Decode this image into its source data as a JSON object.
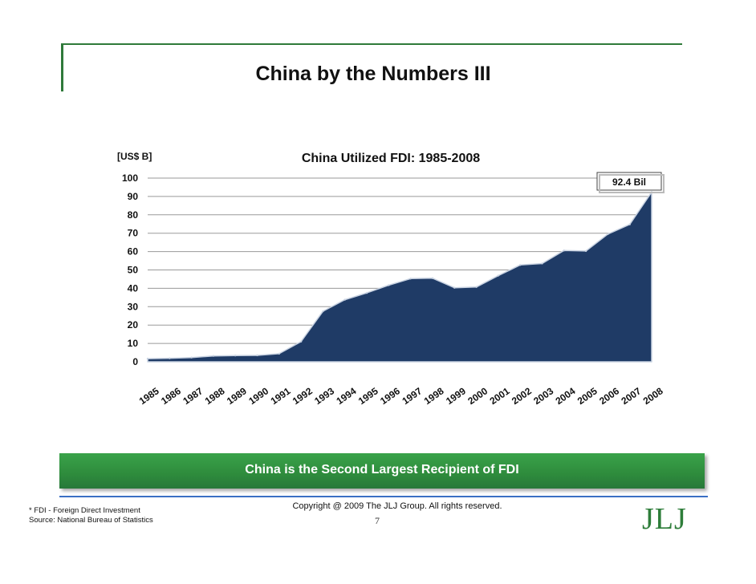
{
  "slide": {
    "title": "China by the Numbers III",
    "banner": "China is the Second Largest Recipient of FDI",
    "footnote_fdi": "* FDI - Foreign Direct Investment",
    "footnote_source": "Source: National Bureau of Statistics",
    "copyright": "Copyright @ 2009 The JLJ Group. All rights reserved.",
    "page_number": "7",
    "logo": "JLJ"
  },
  "colors": {
    "area_fill": "#1f3b66",
    "frame_green": "#2f7a3a",
    "banner_green": "#2e8b3c",
    "footer_blue": "#3b6fc4"
  },
  "chart_data": {
    "type": "area",
    "title": "China Utilized FDI: 1985-2008",
    "ylabel": "[US$ B]",
    "xlabel": "",
    "ylim": [
      0,
      100
    ],
    "yticks": [
      0,
      10,
      20,
      30,
      40,
      50,
      60,
      70,
      80,
      90,
      100
    ],
    "grid": true,
    "categories": [
      "1985",
      "1986",
      "1987",
      "1988",
      "1989",
      "1990",
      "1991",
      "1992",
      "1993",
      "1994",
      "1995",
      "1996",
      "1997",
      "1998",
      "1999",
      "2000",
      "2001",
      "2002",
      "2003",
      "2004",
      "2005",
      "2006",
      "2007",
      "2008"
    ],
    "values": [
      1.7,
      1.9,
      2.3,
      3.2,
      3.4,
      3.5,
      4.4,
      11.0,
      27.5,
      33.8,
      37.5,
      41.7,
      45.3,
      45.5,
      40.3,
      40.7,
      46.9,
      52.7,
      53.5,
      60.6,
      60.3,
      69.5,
      74.8,
      92.4
    ],
    "annotations": [
      {
        "text": "92.4 Bil",
        "x": "2008",
        "y": 92.4
      }
    ]
  }
}
